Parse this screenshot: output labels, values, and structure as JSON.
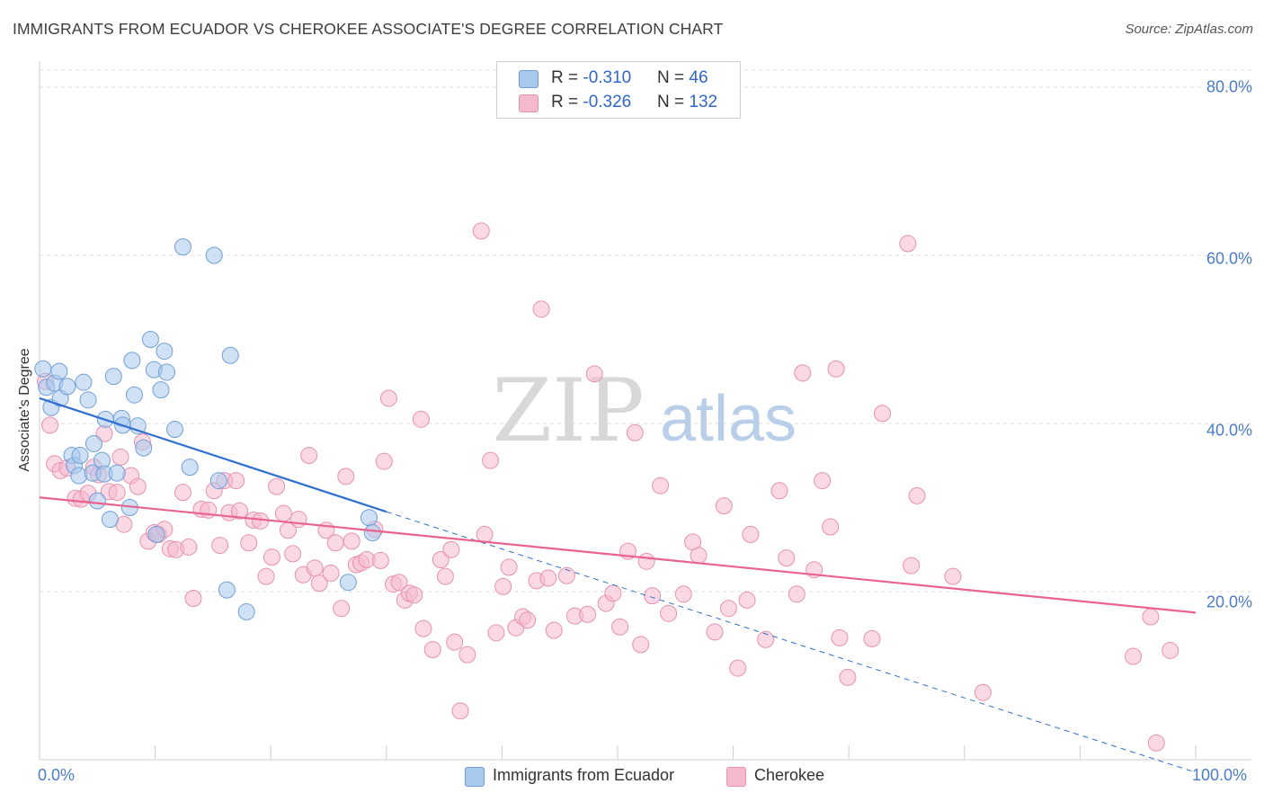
{
  "title": "IMMIGRANTS FROM ECUADOR VS CHEROKEE ASSOCIATE'S DEGREE CORRELATION CHART",
  "source": "Source: ZipAtlas.com",
  "watermark": {
    "zip": "ZIP",
    "atlas": "atlas"
  },
  "colors": {
    "blue_fill": "#a9c8ee",
    "blue_stroke": "#6f9fd8",
    "blue_line": "#2f6fd0",
    "pink_fill": "#f5b9cd",
    "pink_stroke": "#e891ae",
    "pink_line": "#e8638e",
    "grid": "#dcdcdc",
    "axis_text": "#4a7cc9"
  },
  "legend": {
    "rows": [
      {
        "r_label": "R = ",
        "r_value": "-0.310",
        "n_label": "N = ",
        "n_value": " 46"
      },
      {
        "r_label": "R = ",
        "r_value": "-0.326",
        "n_label": "N = ",
        "n_value": "132"
      }
    ]
  },
  "bottom_legend": [
    "Immigrants from Ecuador",
    "Cherokee"
  ],
  "chart_data": {
    "type": "scatter",
    "title": "IMMIGRANTS FROM ECUADOR VS CHEROKEE ASSOCIATE'S DEGREE CORRELATION CHART",
    "xlabel": "",
    "ylabel": "Associate's Degree",
    "xlim": [
      0,
      100
    ],
    "ylim": [
      0,
      80
    ],
    "x_tick_labels": [
      "0.0%",
      "100.0%"
    ],
    "y_ticks": [
      20,
      40,
      60,
      80
    ],
    "y_tick_labels": [
      "20.0%",
      "40.0%",
      "60.0%",
      "80.0%"
    ],
    "grid": "horizontal dashed",
    "legend_position": "top-center",
    "series": [
      {
        "name": "Immigrants from Ecuador",
        "color": "#a9c8ee",
        "R": -0.31,
        "N": 46,
        "trend": {
          "x": [
            0,
            30
          ],
          "y": [
            43.0,
            29.5
          ],
          "dashed_extension_to": [
            100,
            -1.5
          ]
        },
        "points": [
          [
            0.3,
            46.5
          ],
          [
            0.6,
            44.3
          ],
          [
            1.0,
            41.9
          ],
          [
            1.3,
            44.8
          ],
          [
            1.7,
            46.2
          ],
          [
            1.8,
            43.0
          ],
          [
            2.4,
            44.4
          ],
          [
            2.8,
            36.2
          ],
          [
            3.0,
            35.0
          ],
          [
            3.4,
            33.8
          ],
          [
            3.5,
            36.2
          ],
          [
            3.8,
            44.9
          ],
          [
            4.2,
            42.8
          ],
          [
            4.6,
            34.1
          ],
          [
            4.7,
            37.6
          ],
          [
            5.0,
            30.8
          ],
          [
            5.4,
            35.6
          ],
          [
            5.6,
            34.0
          ],
          [
            5.7,
            40.5
          ],
          [
            6.1,
            28.6
          ],
          [
            6.4,
            45.6
          ],
          [
            6.7,
            34.1
          ],
          [
            7.1,
            40.6
          ],
          [
            7.2,
            39.8
          ],
          [
            7.8,
            30.0
          ],
          [
            8.0,
            47.5
          ],
          [
            8.2,
            43.4
          ],
          [
            8.5,
            39.7
          ],
          [
            9.0,
            37.1
          ],
          [
            9.6,
            50.0
          ],
          [
            9.9,
            46.4
          ],
          [
            10.1,
            26.8
          ],
          [
            10.5,
            44.0
          ],
          [
            10.8,
            48.6
          ],
          [
            11.0,
            46.1
          ],
          [
            11.7,
            39.3
          ],
          [
            12.4,
            61.0
          ],
          [
            13.0,
            34.8
          ],
          [
            15.1,
            60.0
          ],
          [
            15.5,
            33.2
          ],
          [
            16.2,
            20.2
          ],
          [
            16.5,
            48.1
          ],
          [
            17.9,
            17.6
          ],
          [
            26.7,
            21.1
          ],
          [
            28.5,
            28.8
          ],
          [
            28.8,
            27.0
          ]
        ]
      },
      {
        "name": "Cherokee",
        "color": "#f5b9cd",
        "R": -0.326,
        "N": 132,
        "trend": {
          "x": [
            0,
            100
          ],
          "y": [
            31.2,
            17.5
          ]
        },
        "points": [
          [
            0.5,
            45.0
          ],
          [
            0.9,
            39.8
          ],
          [
            1.3,
            35.2
          ],
          [
            1.8,
            34.4
          ],
          [
            2.4,
            34.7
          ],
          [
            3.1,
            31.1
          ],
          [
            3.6,
            31.0
          ],
          [
            4.2,
            31.7
          ],
          [
            4.7,
            34.8
          ],
          [
            5.1,
            33.9
          ],
          [
            5.6,
            38.8
          ],
          [
            6.0,
            31.9
          ],
          [
            6.7,
            31.8
          ],
          [
            7.0,
            36.0
          ],
          [
            7.3,
            28.0
          ],
          [
            7.9,
            33.8
          ],
          [
            8.5,
            32.5
          ],
          [
            8.9,
            37.8
          ],
          [
            9.4,
            26.0
          ],
          [
            9.9,
            27.0
          ],
          [
            10.3,
            26.8
          ],
          [
            10.8,
            27.4
          ],
          [
            11.3,
            25.1
          ],
          [
            11.8,
            25.0
          ],
          [
            12.4,
            31.8
          ],
          [
            12.9,
            25.3
          ],
          [
            13.3,
            19.2
          ],
          [
            14.0,
            29.8
          ],
          [
            14.6,
            29.7
          ],
          [
            15.1,
            32.0
          ],
          [
            15.6,
            25.5
          ],
          [
            16.0,
            33.2
          ],
          [
            16.4,
            29.4
          ],
          [
            17.0,
            33.2
          ],
          [
            17.3,
            29.6
          ],
          [
            18.1,
            25.8
          ],
          [
            18.5,
            28.5
          ],
          [
            19.1,
            28.4
          ],
          [
            19.6,
            21.8
          ],
          [
            20.1,
            24.1
          ],
          [
            20.5,
            32.5
          ],
          [
            21.1,
            29.3
          ],
          [
            21.5,
            27.3
          ],
          [
            21.9,
            24.5
          ],
          [
            22.4,
            28.6
          ],
          [
            22.8,
            22.0
          ],
          [
            23.3,
            36.2
          ],
          [
            23.8,
            22.8
          ],
          [
            24.2,
            21.0
          ],
          [
            24.8,
            27.3
          ],
          [
            25.2,
            22.2
          ],
          [
            25.6,
            25.8
          ],
          [
            26.1,
            18.0
          ],
          [
            26.5,
            33.7
          ],
          [
            27.0,
            26.0
          ],
          [
            27.4,
            23.2
          ],
          [
            27.8,
            23.4
          ],
          [
            28.3,
            23.8
          ],
          [
            29.0,
            27.4
          ],
          [
            29.5,
            23.7
          ],
          [
            29.8,
            35.5
          ],
          [
            30.2,
            43.0
          ],
          [
            30.6,
            20.9
          ],
          [
            31.1,
            21.1
          ],
          [
            31.6,
            19.0
          ],
          [
            32.0,
            19.8
          ],
          [
            32.4,
            19.6
          ],
          [
            33.0,
            40.5
          ],
          [
            33.2,
            15.6
          ],
          [
            34.0,
            13.1
          ],
          [
            34.7,
            23.8
          ],
          [
            35.1,
            21.8
          ],
          [
            35.6,
            25.0
          ],
          [
            35.9,
            14.0
          ],
          [
            36.4,
            5.8
          ],
          [
            37.0,
            12.5
          ],
          [
            38.2,
            62.9
          ],
          [
            38.5,
            26.8
          ],
          [
            39.0,
            35.6
          ],
          [
            39.5,
            15.1
          ],
          [
            40.1,
            20.6
          ],
          [
            40.6,
            22.9
          ],
          [
            41.2,
            15.7
          ],
          [
            41.8,
            17.0
          ],
          [
            42.2,
            16.6
          ],
          [
            43.0,
            21.3
          ],
          [
            43.4,
            53.6
          ],
          [
            44.0,
            21.6
          ],
          [
            44.5,
            15.4
          ],
          [
            45.6,
            21.9
          ],
          [
            46.3,
            17.1
          ],
          [
            47.4,
            17.3
          ],
          [
            48.0,
            45.9
          ],
          [
            49.0,
            18.6
          ],
          [
            49.6,
            19.8
          ],
          [
            50.2,
            15.8
          ],
          [
            50.9,
            24.8
          ],
          [
            51.5,
            38.9
          ],
          [
            52.0,
            13.7
          ],
          [
            52.5,
            23.6
          ],
          [
            53.0,
            19.5
          ],
          [
            53.7,
            32.6
          ],
          [
            54.4,
            17.4
          ],
          [
            55.7,
            19.7
          ],
          [
            56.5,
            25.9
          ],
          [
            57.0,
            24.3
          ],
          [
            58.4,
            15.2
          ],
          [
            59.2,
            30.2
          ],
          [
            59.6,
            18.0
          ],
          [
            60.4,
            10.9
          ],
          [
            61.2,
            19.0
          ],
          [
            61.5,
            26.8
          ],
          [
            62.8,
            14.3
          ],
          [
            64.0,
            32.0
          ],
          [
            64.6,
            24.0
          ],
          [
            65.5,
            19.7
          ],
          [
            66.0,
            46.0
          ],
          [
            67.0,
            22.6
          ],
          [
            67.7,
            33.2
          ],
          [
            68.4,
            27.7
          ],
          [
            69.2,
            14.5
          ],
          [
            69.9,
            9.8
          ],
          [
            68.9,
            46.5
          ],
          [
            72.0,
            14.4
          ],
          [
            72.9,
            41.2
          ],
          [
            75.4,
            23.1
          ],
          [
            75.9,
            31.4
          ],
          [
            75.1,
            61.4
          ],
          [
            79.0,
            21.8
          ],
          [
            81.6,
            8.0
          ],
          [
            94.6,
            12.3
          ],
          [
            96.1,
            17.0
          ],
          [
            97.8,
            13.0
          ],
          [
            96.6,
            2.0
          ]
        ]
      }
    ]
  }
}
